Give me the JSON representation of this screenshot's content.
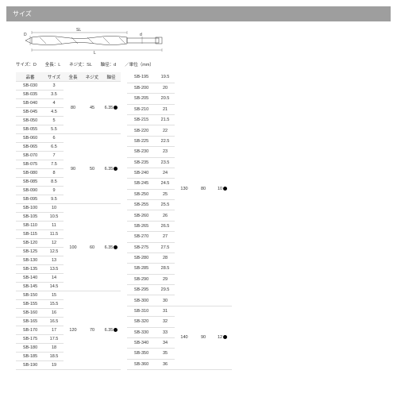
{
  "header": {
    "title": "サイズ"
  },
  "caption": "サイズ：D　　全長：L　　ネジ丈：SL　　軸径：d　　／単位（mm）",
  "diagram": {
    "labels": {
      "D": "D",
      "L": "L",
      "SL": "SL",
      "d": "d"
    }
  },
  "columns": [
    "品番",
    "サイズ",
    "全長",
    "ネジ丈",
    "軸径"
  ],
  "table1_groups": [
    {
      "rows": [
        [
          "SB-030",
          "3"
        ],
        [
          "SB-035",
          "3.5"
        ],
        [
          "SB-040",
          "4"
        ],
        [
          "SB-045",
          "4.5"
        ],
        [
          "SB-050",
          "5"
        ],
        [
          "SB-055",
          "5.5"
        ]
      ],
      "len": "80",
      "scr": "45",
      "sh": "6.35",
      "dot": true
    },
    {
      "rows": [
        [
          "SB-060",
          "6"
        ],
        [
          "SB-065",
          "6.5"
        ],
        [
          "SB-070",
          "7"
        ],
        [
          "SB-075",
          "7.5"
        ],
        [
          "SB-080",
          "8"
        ],
        [
          "SB-085",
          "8.5"
        ],
        [
          "SB-090",
          "9"
        ],
        [
          "SB-095",
          "9.5"
        ]
      ],
      "len": "90",
      "scr": "50",
      "sh": "6.35",
      "dot": true
    },
    {
      "rows": [
        [
          "SB-100",
          "10"
        ],
        [
          "SB-105",
          "10.5"
        ],
        [
          "SB-110",
          "11"
        ],
        [
          "SB-115",
          "11.5"
        ],
        [
          "SB-120",
          "12"
        ],
        [
          "SB-125",
          "12.5"
        ],
        [
          "SB-130",
          "13"
        ],
        [
          "SB-135",
          "13.5"
        ],
        [
          "SB-140",
          "14"
        ],
        [
          "SB-145",
          "14.5"
        ]
      ],
      "len": "100",
      "scr": "60",
      "sh": "6.35",
      "dot": true
    },
    {
      "rows": [
        [
          "SB-150",
          "15"
        ],
        [
          "SB-155",
          "15.5"
        ],
        [
          "SB-160",
          "16"
        ],
        [
          "SB-165",
          "16.5"
        ],
        [
          "SB-170",
          "17"
        ],
        [
          "SB-175",
          "17.5"
        ],
        [
          "SB-180",
          "18"
        ],
        [
          "SB-185",
          "18.5"
        ],
        [
          "SB-190",
          "19"
        ]
      ],
      "len": "120",
      "scr": "70",
      "sh": "6.35",
      "dot": true
    }
  ],
  "table2_groups": [
    {
      "rows": [
        [
          "SB-195",
          "19.5"
        ],
        [
          "SB-200",
          "20"
        ],
        [
          "SB-205",
          "20.5"
        ],
        [
          "SB-210",
          "21"
        ],
        [
          "SB-215",
          "21.5"
        ],
        [
          "SB-220",
          "22"
        ],
        [
          "SB-225",
          "22.5"
        ],
        [
          "SB-230",
          "23"
        ],
        [
          "SB-235",
          "23.5"
        ],
        [
          "SB-240",
          "24"
        ],
        [
          "SB-245",
          "24.5"
        ],
        [
          "SB-250",
          "25"
        ],
        [
          "SB-255",
          "25.5"
        ],
        [
          "SB-260",
          "26"
        ],
        [
          "SB-265",
          "26.5"
        ],
        [
          "SB-270",
          "27"
        ],
        [
          "SB-275",
          "27.5"
        ],
        [
          "SB-280",
          "28"
        ],
        [
          "SB-285",
          "28.5"
        ],
        [
          "SB-290",
          "29"
        ],
        [
          "SB-295",
          "29.5"
        ],
        [
          "SB-300",
          "30"
        ]
      ],
      "len": "130",
      "scr": "80",
      "sh": "10",
      "dot": true
    },
    {
      "rows": [
        [
          "SB-310",
          "31"
        ],
        [
          "SB-320",
          "32"
        ],
        [
          "SB-330",
          "33"
        ],
        [
          "SB-340",
          "34"
        ],
        [
          "SB-350",
          "35"
        ],
        [
          "SB-360",
          "36"
        ]
      ],
      "len": "140",
      "scr": "90",
      "sh": "12",
      "dot": true
    }
  ],
  "colors": {
    "header_bg": "#9e9e9e",
    "border": "#e0e0e0",
    "th_bg": "#f5f5f5"
  }
}
